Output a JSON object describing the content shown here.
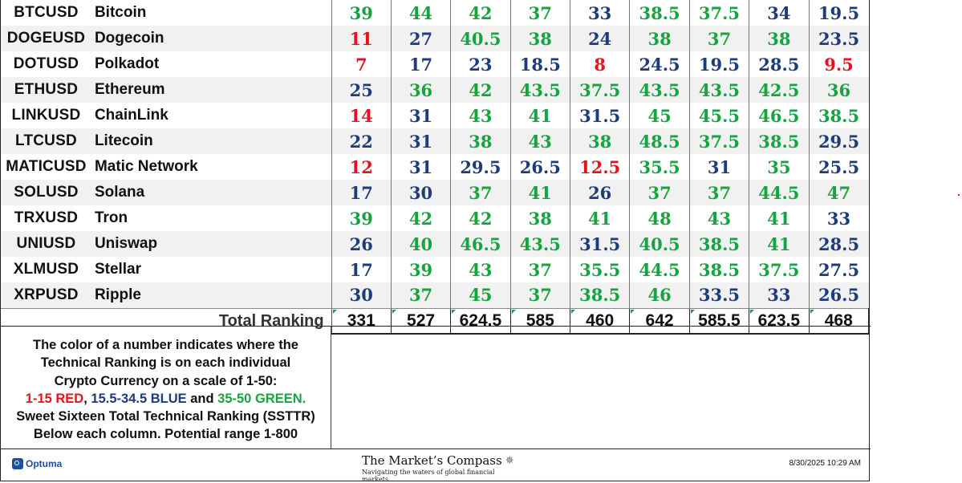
{
  "table": {
    "rows": [
      {
        "symbol": "BTCUSD",
        "name": "Bitcoin",
        "values": [
          "39",
          "44",
          "42",
          "37",
          "33",
          "38.5",
          "37.5",
          "34",
          "19.5"
        ]
      },
      {
        "symbol": "DOGEUSD",
        "name": "Dogecoin",
        "values": [
          "11",
          "27",
          "40.5",
          "38",
          "24",
          "38",
          "37",
          "38",
          "23.5"
        ]
      },
      {
        "symbol": "DOTUSD",
        "name": "Polkadot",
        "values": [
          "7",
          "17",
          "23",
          "18.5",
          "8",
          "24.5",
          "19.5",
          "28.5",
          "9.5"
        ]
      },
      {
        "symbol": "ETHUSD",
        "name": "Ethereum",
        "values": [
          "25",
          "36",
          "42",
          "43.5",
          "37.5",
          "43.5",
          "43.5",
          "42.5",
          "36"
        ]
      },
      {
        "symbol": "LINKUSD",
        "name": "ChainLink",
        "values": [
          "14",
          "31",
          "43",
          "41",
          "31.5",
          "45",
          "45.5",
          "46.5",
          "38.5"
        ]
      },
      {
        "symbol": "LTCUSD",
        "name": "Litecoin",
        "values": [
          "22",
          "31",
          "38",
          "43",
          "38",
          "48.5",
          "37.5",
          "38.5",
          "29.5"
        ]
      },
      {
        "symbol": "MATICUSD",
        "name": "Matic Network",
        "values": [
          "12",
          "31",
          "29.5",
          "26.5",
          "12.5",
          "35.5",
          "31",
          "35",
          "25.5"
        ]
      },
      {
        "symbol": "SOLUSD",
        "name": "Solana",
        "values": [
          "17",
          "30",
          "37",
          "41",
          "26",
          "37",
          "37",
          "44.5",
          "47"
        ]
      },
      {
        "symbol": "TRXUSD",
        "name": "Tron",
        "values": [
          "39",
          "42",
          "42",
          "38",
          "41",
          "48",
          "43",
          "41",
          "33"
        ]
      },
      {
        "symbol": "UNIUSD",
        "name": "Uniswap",
        "values": [
          "26",
          "40",
          "46.5",
          "43.5",
          "31.5",
          "40.5",
          "38.5",
          "41",
          "28.5"
        ]
      },
      {
        "symbol": "XLMUSD",
        "name": "Stellar",
        "values": [
          "17",
          "39",
          "43",
          "37",
          "35.5",
          "44.5",
          "38.5",
          "37.5",
          "27.5"
        ]
      },
      {
        "symbol": "XRPUSD",
        "name": "Ripple",
        "values": [
          "30",
          "37",
          "45",
          "37",
          "38.5",
          "46",
          "33.5",
          "33",
          "26.5"
        ]
      }
    ],
    "total_label": "Total Ranking",
    "totals": [
      "331",
      "527",
      "624.5",
      "585",
      "460",
      "642",
      "585.5",
      "623.5",
      "468"
    ]
  },
  "colors": {
    "red": "#e3141c",
    "blue": "#1d3c7a",
    "green": "#16a340"
  },
  "legend": {
    "line1": "The color of a number indicates where the",
    "line2": "Technical Ranking is on each individual",
    "line3": "Crypto Currency on a scale of 1-50:",
    "red_text": "1-15 RED",
    "sep1": ", ",
    "blue_text": "15.5-34.5 BLUE",
    "and_text": " and ",
    "green_text": "35-50 GREEN.",
    "line5": "Sweet Sixteen Total Technical Ranking (SSTTR)",
    "line6": "Below each column.   Potential range 1-800"
  },
  "footer": {
    "optuma": "Optuma",
    "optuma_icon": "optuma-logo-icon",
    "brand_title": "The Market’s Compass",
    "brand_icon": "compass-rose-icon",
    "brand_tagline": "Navigating the waters of global financial markets",
    "timestamp": "8/30/2025 10:29 AM"
  }
}
